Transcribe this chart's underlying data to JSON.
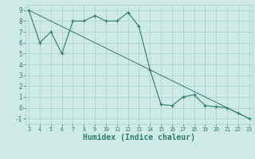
{
  "x": [
    3,
    4,
    5,
    6,
    7,
    8,
    9,
    10,
    11,
    12,
    13,
    14,
    15,
    16,
    17,
    18,
    19,
    20,
    21,
    22,
    23
  ],
  "y": [
    9.0,
    6.0,
    7.0,
    5.0,
    8.0,
    8.0,
    8.5,
    8.0,
    8.0,
    8.8,
    7.5,
    3.5,
    0.3,
    0.2,
    1.0,
    1.2,
    0.2,
    0.1,
    0.0,
    -0.5,
    -1.0
  ],
  "trend_x": [
    3,
    23
  ],
  "trend_y": [
    9,
    -1
  ],
  "line_color": "#2e7d6e",
  "xlabel": "Humidex (Indice chaleur)",
  "xlim": [
    3,
    23
  ],
  "ylim": [
    -1.5,
    9.5
  ],
  "bg_color": "#ceeae4",
  "grid_color": "#aacfc8",
  "tick_color": "#2e7d6e",
  "yticks": [
    -1,
    0,
    1,
    2,
    3,
    4,
    5,
    6,
    7,
    8,
    9
  ],
  "xticks": [
    3,
    4,
    5,
    6,
    7,
    8,
    9,
    10,
    11,
    12,
    13,
    14,
    15,
    16,
    17,
    18,
    19,
    20,
    21,
    22,
    23
  ]
}
